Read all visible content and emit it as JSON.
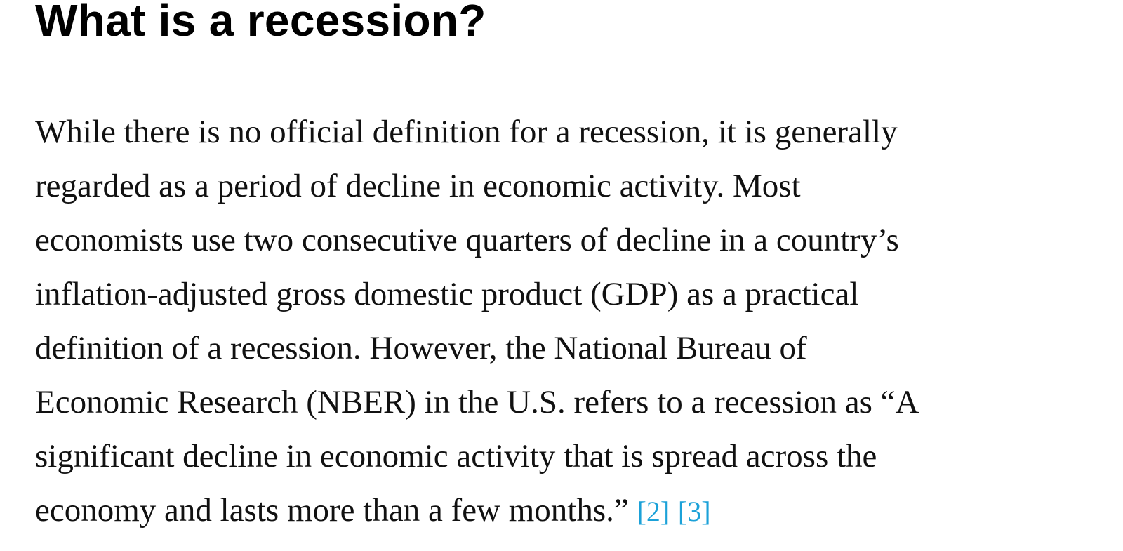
{
  "heading": "What is a recession?",
  "paragraph_lines": [
    "While there is no official definition for a recession, it is generally",
    "regarded as a period of decline in economic activity. Most",
    "economists use two consecutive quarters of decline in a country’s",
    "inflation-adjusted gross domestic product (GDP) as a practical",
    "definition of a recession. However, the National Bureau of",
    "Economic Research (NBER) in the U.S. refers to a recession as “A",
    "significant decline in economic activity that is spread across the",
    "economy and lasts more than a few months.”"
  ],
  "citations": [
    "[2]",
    "[3]"
  ],
  "colors": {
    "citation_link": "#1ba1d8",
    "text": "#111111"
  }
}
